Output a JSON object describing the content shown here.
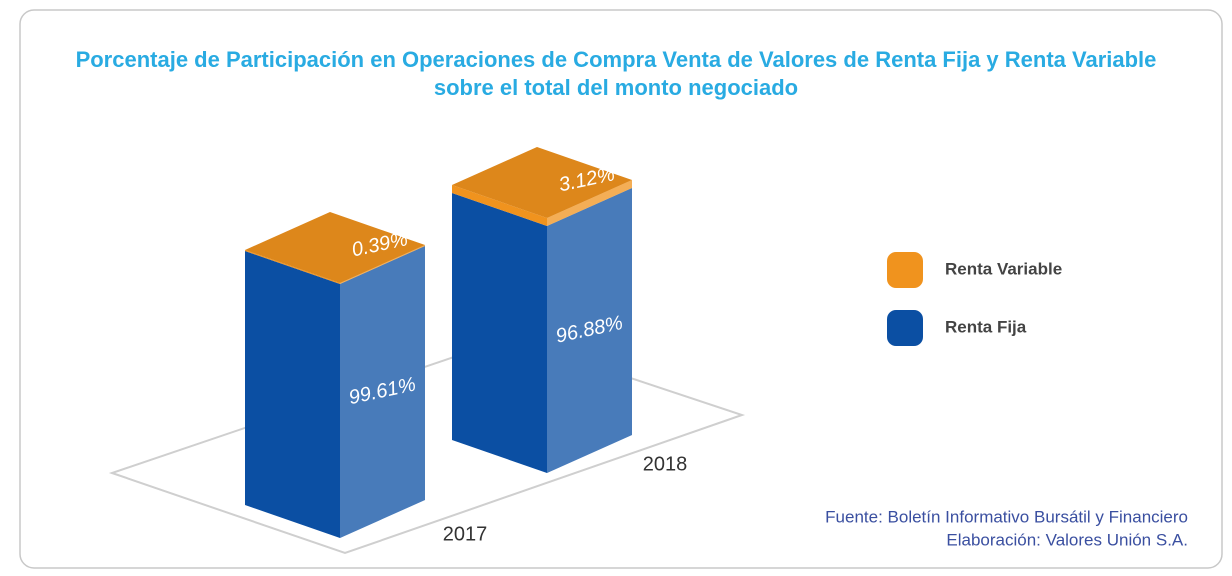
{
  "chart_data": {
    "type": "bar3d_stacked",
    "title": "Porcentaje de Participación en Operaciones de Compra Venta de Valores de Renta Fija y Renta Variable sobre el total del monto negociado",
    "categories": [
      "2017",
      "2018"
    ],
    "series": [
      {
        "name": "Renta Fija",
        "color": "#0b4fa3",
        "values": [
          99.61,
          96.88
        ],
        "value_labels": [
          "99.61%",
          "96.88%"
        ]
      },
      {
        "name": "Renta Variable",
        "color": "#f0931e",
        "values": [
          0.39,
          3.12
        ],
        "value_labels": [
          "0.39%",
          "3.12%"
        ]
      }
    ],
    "notes": [
      "Fuente: Boletín Informativo Bursátil y Financiero",
      "Elaboración: Valores Unión S.A."
    ]
  }
}
